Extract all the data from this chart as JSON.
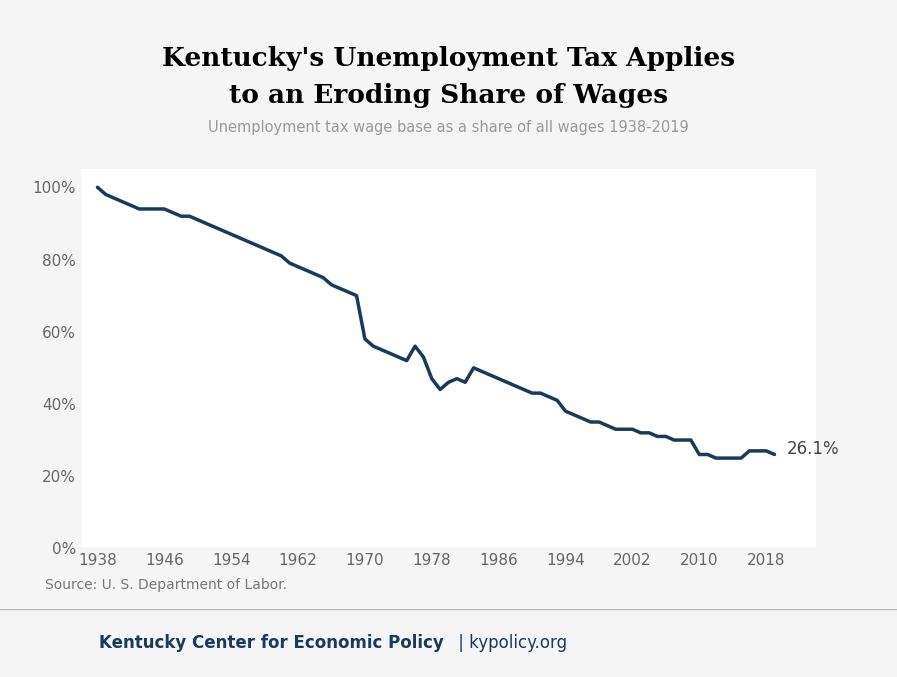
{
  "title_line1": "Kentucky's Unemployment Tax Applies",
  "title_line2": "to an Eroding Share of Wages",
  "subtitle": "Unemployment tax wage base as a share of all wages 1938-2019",
  "source_text": "Source: U. S. Department of Labor.",
  "footer_bold": "Kentucky Center for Economic Policy",
  "footer_normal": " | kypolicy.org",
  "annotation": "26.1%",
  "line_color": "#1a3a5c",
  "background_color": "#f5f5f5",
  "plot_bg_color": "#ffffff",
  "footer_bg_color": "#dddddd",
  "ylim": [
    0,
    105
  ],
  "yticks": [
    0,
    20,
    40,
    60,
    80,
    100
  ],
  "ytick_labels": [
    "0%",
    "20%",
    "40%",
    "60%",
    "80%",
    "100%"
  ],
  "xticks": [
    1938,
    1946,
    1954,
    1962,
    1970,
    1978,
    1986,
    1994,
    2002,
    2010,
    2018
  ],
  "years": [
    1938,
    1939,
    1940,
    1941,
    1942,
    1943,
    1944,
    1945,
    1946,
    1947,
    1948,
    1949,
    1950,
    1951,
    1952,
    1953,
    1954,
    1955,
    1956,
    1957,
    1958,
    1959,
    1960,
    1961,
    1962,
    1963,
    1964,
    1965,
    1966,
    1967,
    1968,
    1969,
    1970,
    1971,
    1972,
    1973,
    1974,
    1975,
    1976,
    1977,
    1978,
    1979,
    1980,
    1981,
    1982,
    1983,
    1984,
    1985,
    1986,
    1987,
    1988,
    1989,
    1990,
    1991,
    1992,
    1993,
    1994,
    1995,
    1996,
    1997,
    1998,
    1999,
    2000,
    2001,
    2002,
    2003,
    2004,
    2005,
    2006,
    2007,
    2008,
    2009,
    2010,
    2011,
    2012,
    2013,
    2014,
    2015,
    2016,
    2017,
    2018,
    2019
  ],
  "values": [
    100,
    98,
    97,
    96,
    95,
    94,
    94,
    94,
    94,
    93,
    92,
    92,
    91,
    90,
    89,
    88,
    87,
    86,
    85,
    84,
    83,
    82,
    81,
    79,
    78,
    77,
    76,
    75,
    73,
    72,
    71,
    70,
    58,
    56,
    55,
    54,
    53,
    52,
    56,
    53,
    47,
    44,
    46,
    47,
    46,
    50,
    49,
    48,
    47,
    46,
    45,
    44,
    43,
    43,
    42,
    41,
    38,
    37,
    36,
    35,
    35,
    34,
    33,
    33,
    33,
    32,
    32,
    31,
    31,
    30,
    30,
    30,
    26,
    26,
    25,
    25,
    25,
    25,
    27,
    27,
    27,
    26
  ]
}
